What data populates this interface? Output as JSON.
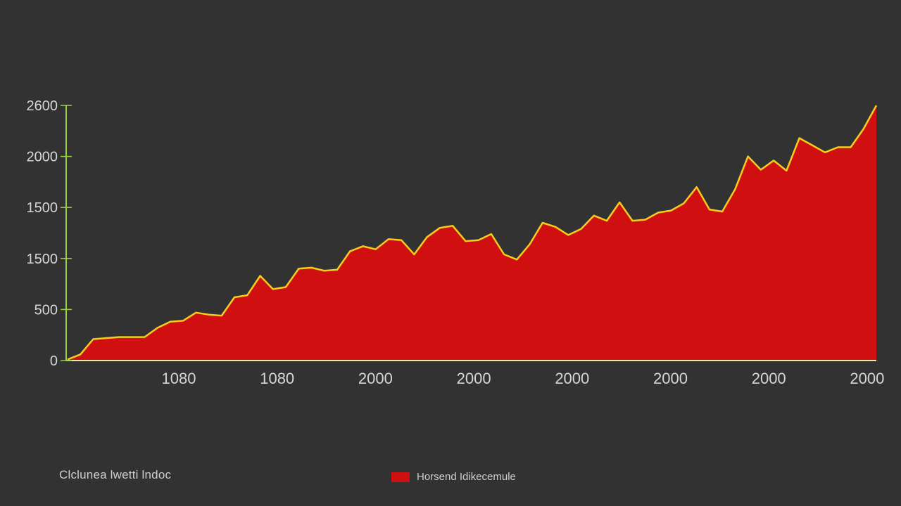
{
  "chart_data": {
    "type": "area",
    "series": [
      {
        "name": "Horsend Idikecemule",
        "fill_color": "#d01010",
        "line_color": "#f3cf1a",
        "values": [
          10,
          60,
          210,
          220,
          230,
          230,
          230,
          320,
          380,
          390,
          470,
          450,
          440,
          620,
          640,
          830,
          700,
          720,
          900,
          910,
          880,
          890,
          1070,
          1120,
          1090,
          1190,
          1180,
          1040,
          1210,
          1300,
          1320,
          1170,
          1180,
          1240,
          1040,
          990,
          1140,
          1350,
          1310,
          1230,
          1290,
          1420,
          1370,
          1550,
          1370,
          1380,
          1450,
          1470,
          1540,
          1700,
          1480,
          1460,
          1680,
          2000,
          1870,
          1960,
          1860,
          2180,
          2110,
          2040,
          2090,
          2090,
          2270,
          2500
        ]
      }
    ],
    "y_ticks": [
      "0",
      "500",
      "1500",
      "1500",
      "2000",
      "2600"
    ],
    "x_ticks": [
      "1080",
      "1080",
      "2000",
      "2000",
      "2000",
      "2000",
      "2000",
      "2000"
    ],
    "ylim": [
      0,
      2500
    ],
    "caption": "Clclunea lwetti lndoc",
    "legend": {
      "position": "bottom-center"
    },
    "colors": {
      "background": "#323232",
      "axis": "#9ad142",
      "baseline": "#f3e8a0"
    }
  }
}
